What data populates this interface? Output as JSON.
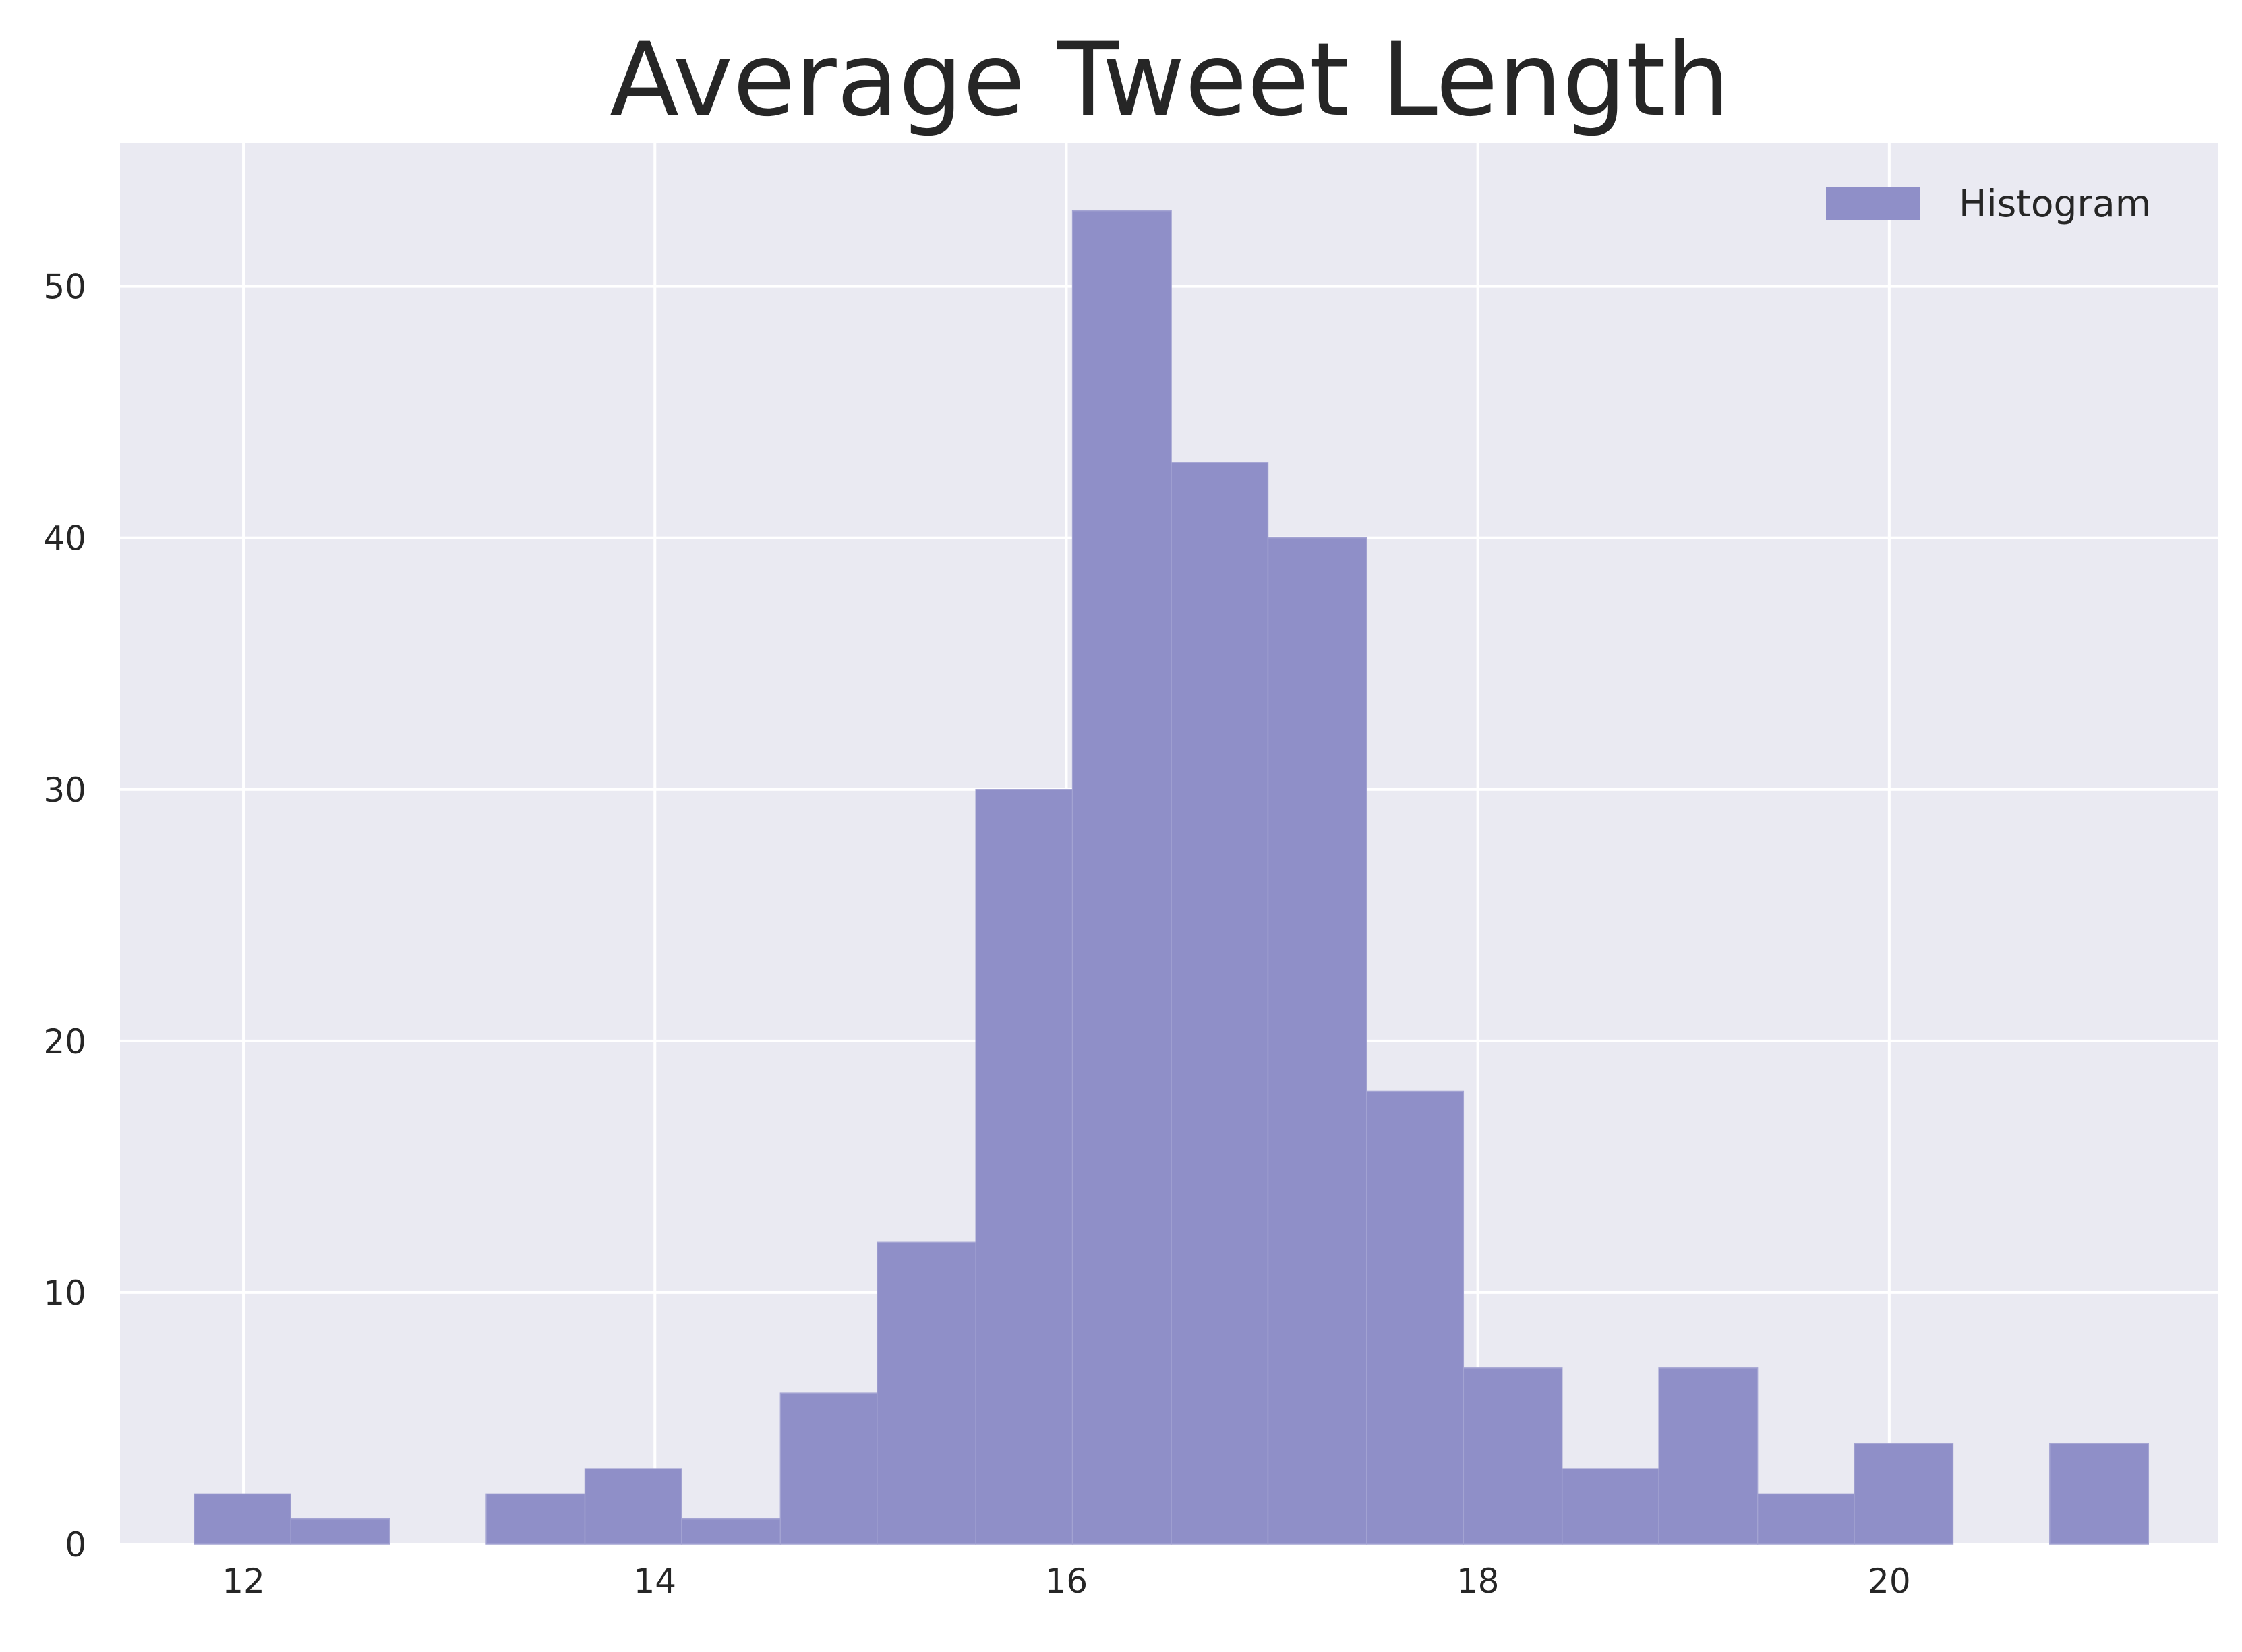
{
  "chart_data": {
    "type": "bar",
    "title": "Average Tweet Length",
    "xlabel": "",
    "ylabel": "",
    "legend": {
      "label": "Histogram",
      "position": "top-right"
    },
    "grid": true,
    "xlim": [
      11.4,
      21.6
    ],
    "ylim": [
      0,
      55.7
    ],
    "xticks": [
      12,
      14,
      16,
      18,
      20
    ],
    "yticks": [
      0,
      10,
      20,
      30,
      40,
      50
    ],
    "bins": [
      {
        "x0": 11.76,
        "x1": 12.23,
        "count": 2
      },
      {
        "x0": 12.23,
        "x1": 12.71,
        "count": 1
      },
      {
        "x0": 12.71,
        "x1": 13.18,
        "count": 0
      },
      {
        "x0": 13.18,
        "x1": 13.66,
        "count": 2
      },
      {
        "x0": 13.66,
        "x1": 14.13,
        "count": 3
      },
      {
        "x0": 14.13,
        "x1": 14.61,
        "count": 1
      },
      {
        "x0": 14.61,
        "x1": 15.08,
        "count": 6
      },
      {
        "x0": 15.08,
        "x1": 15.56,
        "count": 12
      },
      {
        "x0": 15.56,
        "x1": 16.03,
        "count": 30
      },
      {
        "x0": 16.03,
        "x1": 16.51,
        "count": 53
      },
      {
        "x0": 16.51,
        "x1": 16.98,
        "count": 43
      },
      {
        "x0": 16.98,
        "x1": 17.46,
        "count": 40
      },
      {
        "x0": 17.46,
        "x1": 17.93,
        "count": 18
      },
      {
        "x0": 17.93,
        "x1": 18.41,
        "count": 7
      },
      {
        "x0": 18.41,
        "x1": 18.88,
        "count": 3
      },
      {
        "x0": 18.88,
        "x1": 19.36,
        "count": 7
      },
      {
        "x0": 19.36,
        "x1": 19.83,
        "count": 2
      },
      {
        "x0": 19.83,
        "x1": 20.31,
        "count": 4
      },
      {
        "x0": 20.31,
        "x1": 20.78,
        "count": 0
      },
      {
        "x0": 20.78,
        "x1": 21.26,
        "count": 4
      }
    ],
    "colors": {
      "bar": "#8f8fc8",
      "plot_background": "#eaeaf2",
      "grid": "#ffffff"
    }
  }
}
